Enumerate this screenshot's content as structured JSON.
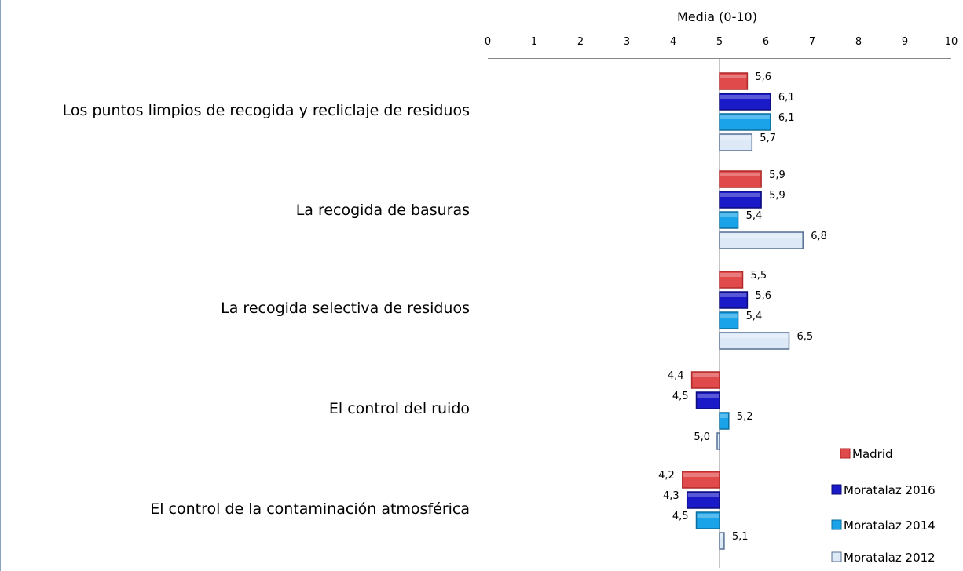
{
  "chart_data": {
    "type": "bar",
    "orientation": "horizontal",
    "title": "",
    "xlabel": "Media (0-10)",
    "ylabel": "",
    "xlim": [
      0,
      10
    ],
    "baseline": 5,
    "x_ticks": [
      "0",
      "1",
      "2",
      "3",
      "4",
      "5",
      "6",
      "7",
      "8",
      "9",
      "10"
    ],
    "axis_position": "top",
    "grid": false,
    "legend_position": "bottom-right",
    "categories": [
      "Los puntos limpios de recogida y recliclaje de residuos",
      "La recogida de basuras",
      "La recogida selectiva de residuos",
      "El control del ruido",
      "El control de la contaminación atmosférica"
    ],
    "series": [
      {
        "name": "Madrid",
        "color": "#e04a4a",
        "values": [
          5.6,
          5.9,
          5.5,
          4.4,
          4.2
        ],
        "labels": [
          "5,6",
          "5,9",
          "5,5",
          "4,4",
          "4,2"
        ]
      },
      {
        "name": "Moratalaz 2016",
        "color": "#1a1ac8",
        "values": [
          6.1,
          5.9,
          5.6,
          4.5,
          4.3
        ],
        "labels": [
          "6,1",
          "5,9",
          "5,6",
          "4,5",
          "4,3"
        ]
      },
      {
        "name": "Moratalaz 2014",
        "color": "#1aa3e8",
        "values": [
          6.1,
          5.4,
          5.4,
          5.2,
          4.5
        ],
        "labels": [
          "6,1",
          "5,4",
          "5,4",
          "5,2",
          "4,5"
        ]
      },
      {
        "name": "Moratalaz 2012",
        "color": "#dde9f7",
        "values": [
          5.7,
          6.8,
          6.5,
          5.0,
          5.1
        ],
        "labels": [
          "5,7",
          "6,8",
          "6,5",
          "5,0",
          "5,1"
        ]
      }
    ]
  }
}
